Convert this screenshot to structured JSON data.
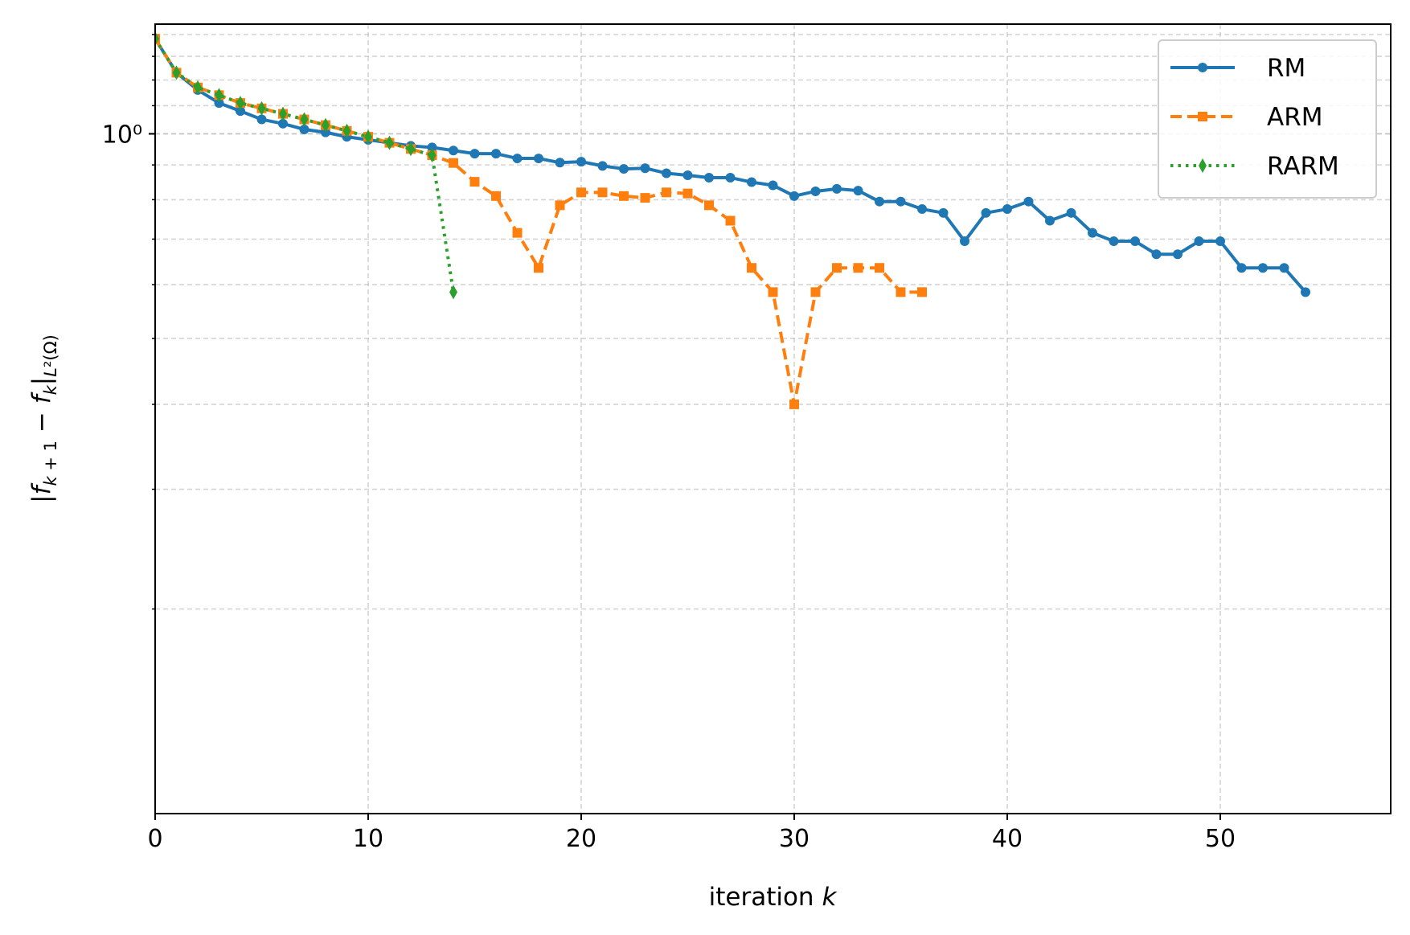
{
  "chart_data": {
    "type": "line",
    "xlabel": "iteration k",
    "ylabel": "|f_{k+1} − f_k|_{L²(Ω)}",
    "yscale": "log",
    "xlim": [
      0,
      58
    ],
    "ylim": [
      0.1,
      1.45
    ],
    "xticks": [
      0,
      10,
      20,
      30,
      40,
      50
    ],
    "xtick_labels": [
      "0",
      "10",
      "20",
      "30",
      "40",
      "50"
    ],
    "yticks": [
      1.0
    ],
    "ytick_labels": [
      "10⁰"
    ],
    "grid": true,
    "legend_position": "top-right",
    "series": [
      {
        "name": "RM",
        "color": "#1f77b4",
        "linestyle": "solid",
        "marker": "circle",
        "x": [
          0,
          1,
          2,
          3,
          4,
          5,
          6,
          7,
          8,
          9,
          10,
          11,
          12,
          13,
          14,
          15,
          16,
          17,
          18,
          19,
          20,
          21,
          22,
          23,
          24,
          25,
          26,
          27,
          28,
          29,
          30,
          31,
          32,
          33,
          34,
          35,
          36,
          37,
          38,
          39,
          40,
          41,
          42,
          43,
          44,
          45,
          46,
          47,
          48,
          49,
          50,
          51,
          52,
          53,
          54
        ],
        "y": [
          1.38,
          1.23,
          1.16,
          1.11,
          1.08,
          1.05,
          1.035,
          1.015,
          1.005,
          0.99,
          0.98,
          0.97,
          0.96,
          0.955,
          0.945,
          0.935,
          0.935,
          0.92,
          0.92,
          0.907,
          0.91,
          0.897,
          0.888,
          0.89,
          0.875,
          0.869,
          0.862,
          0.862,
          0.849,
          0.84,
          0.81,
          0.823,
          0.83,
          0.825,
          0.795,
          0.795,
          0.775,
          0.765,
          0.695,
          0.765,
          0.775,
          0.795,
          0.745,
          0.765,
          0.715,
          0.695,
          0.695,
          0.665,
          0.665,
          0.695,
          0.695,
          0.635,
          0.635,
          0.635,
          0.585
        ]
      },
      {
        "name": "ARM",
        "color": "#ff7f0e",
        "linestyle": "dashed",
        "marker": "square",
        "x": [
          0,
          1,
          2,
          3,
          4,
          5,
          6,
          7,
          8,
          9,
          10,
          11,
          12,
          13,
          14,
          15,
          16,
          17,
          18,
          19,
          20,
          21,
          22,
          23,
          24,
          25,
          26,
          27,
          28,
          29,
          30,
          31,
          32,
          33,
          34,
          35,
          36
        ],
        "y": [
          1.38,
          1.23,
          1.17,
          1.14,
          1.11,
          1.09,
          1.07,
          1.05,
          1.03,
          1.01,
          0.99,
          0.97,
          0.95,
          0.93,
          0.906,
          0.85,
          0.81,
          0.715,
          0.635,
          0.785,
          0.82,
          0.82,
          0.81,
          0.805,
          0.82,
          0.817,
          0.785,
          0.745,
          0.635,
          0.585,
          0.4,
          0.585,
          0.635,
          0.635,
          0.635,
          0.585,
          0.585
        ]
      },
      {
        "name": "RARM",
        "color": "#2ca02c",
        "linestyle": "dotted",
        "marker": "diamond",
        "x": [
          0,
          1,
          2,
          3,
          4,
          5,
          6,
          7,
          8,
          9,
          10,
          11,
          12,
          13,
          14
        ],
        "y": [
          1.38,
          1.23,
          1.17,
          1.14,
          1.11,
          1.09,
          1.07,
          1.05,
          1.03,
          1.01,
          0.99,
          0.97,
          0.95,
          0.93,
          0.585
        ]
      }
    ]
  }
}
